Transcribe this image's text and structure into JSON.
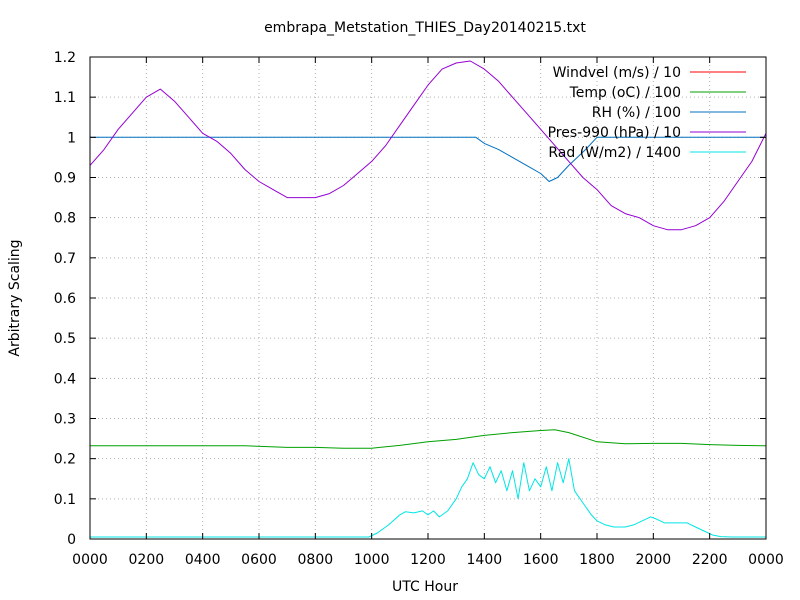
{
  "chart_data": {
    "type": "line",
    "title": "embrapa_Metstation_THIES_Day20140215.txt",
    "xlabel": "UTC Hour",
    "ylabel": "Arbitrary Scaling",
    "xlim": [
      0,
      24
    ],
    "ylim": [
      0,
      1.2
    ],
    "grid": true,
    "legend_position": "top-right",
    "xtick_labels": [
      "0000",
      "0200",
      "0400",
      "0600",
      "0800",
      "1000",
      "1200",
      "1400",
      "1600",
      "1800",
      "2000",
      "2200",
      "0000"
    ],
    "ytick_labels": [
      "0",
      "0.1",
      "0.2",
      "0.3",
      "0.4",
      "0.5",
      "0.6",
      "0.7",
      "0.8",
      "0.9",
      "1",
      "1.1",
      "1.2"
    ],
    "series": [
      {
        "name": "Windvel (m/s) / 10",
        "color": "#ff0000",
        "x": [],
        "y": []
      },
      {
        "name": "Temp (oC) / 100",
        "color": "#00a000",
        "x": [
          0,
          2,
          4,
          5.5,
          7,
          8,
          9,
          10,
          11,
          12,
          13,
          14,
          15,
          16,
          16.5,
          17,
          18,
          19,
          20,
          21,
          22,
          23,
          24
        ],
        "y": [
          0.232,
          0.232,
          0.232,
          0.232,
          0.228,
          0.228,
          0.226,
          0.226,
          0.233,
          0.242,
          0.248,
          0.258,
          0.265,
          0.27,
          0.272,
          0.265,
          0.242,
          0.237,
          0.238,
          0.238,
          0.235,
          0.233,
          0.232
        ]
      },
      {
        "name": "RH (%) / 100",
        "color": "#0070c0",
        "x": [
          0,
          6,
          12,
          13.7,
          14,
          14.5,
          15,
          15.5,
          16,
          16.3,
          16.6,
          17,
          17.3,
          17.6,
          18,
          24
        ],
        "y": [
          1,
          1,
          1,
          1,
          0.985,
          0.97,
          0.95,
          0.93,
          0.91,
          0.89,
          0.9,
          0.93,
          0.95,
          0.97,
          1,
          1
        ]
      },
      {
        "name": "Pres-990 (hPa) / 10",
        "color": "#9400d3",
        "x": [
          0,
          0.5,
          1,
          1.5,
          2,
          2.5,
          3,
          3.5,
          4,
          4.5,
          5,
          5.5,
          6,
          6.5,
          7,
          7.5,
          8,
          8.5,
          9,
          9.5,
          10,
          10.5,
          11,
          11.5,
          12,
          12.5,
          13,
          13.5,
          14,
          14.5,
          15,
          15.5,
          16,
          16.5,
          17,
          17.5,
          18,
          18.5,
          19,
          19.5,
          20,
          20.5,
          21,
          21.5,
          22,
          22.5,
          23,
          23.5,
          24
        ],
        "y": [
          0.93,
          0.97,
          1.02,
          1.06,
          1.1,
          1.12,
          1.09,
          1.05,
          1.01,
          0.99,
          0.96,
          0.92,
          0.89,
          0.87,
          0.85,
          0.85,
          0.85,
          0.86,
          0.88,
          0.91,
          0.94,
          0.98,
          1.03,
          1.08,
          1.13,
          1.17,
          1.185,
          1.19,
          1.17,
          1.14,
          1.1,
          1.06,
          1.02,
          0.98,
          0.94,
          0.9,
          0.87,
          0.83,
          0.81,
          0.8,
          0.78,
          0.77,
          0.77,
          0.78,
          0.8,
          0.84,
          0.89,
          0.94,
          1.01
        ]
      },
      {
        "name": "Rad (W/m2) / 1400",
        "color": "#00e5e5",
        "x": [
          0,
          9.9,
          10.2,
          10.6,
          11,
          11.2,
          11.5,
          11.8,
          12,
          12.2,
          12.4,
          12.7,
          13,
          13.2,
          13.4,
          13.6,
          13.8,
          14,
          14.2,
          14.4,
          14.6,
          14.8,
          15,
          15.2,
          15.4,
          15.6,
          15.8,
          16,
          16.2,
          16.4,
          16.6,
          16.8,
          17,
          17.2,
          17.5,
          17.8,
          18,
          18.3,
          18.6,
          19,
          19.3,
          19.6,
          19.9,
          20.1,
          20.4,
          20.8,
          21.2,
          21.5,
          21.8,
          22.1,
          22.4,
          22.8,
          23.2,
          24
        ],
        "y": [
          0.005,
          0.005,
          0.015,
          0.035,
          0.06,
          0.068,
          0.065,
          0.07,
          0.06,
          0.07,
          0.055,
          0.07,
          0.1,
          0.13,
          0.15,
          0.19,
          0.16,
          0.15,
          0.18,
          0.14,
          0.17,
          0.12,
          0.17,
          0.1,
          0.19,
          0.12,
          0.15,
          0.13,
          0.18,
          0.12,
          0.19,
          0.14,
          0.2,
          0.12,
          0.09,
          0.06,
          0.045,
          0.035,
          0.03,
          0.03,
          0.035,
          0.045,
          0.055,
          0.05,
          0.04,
          0.04,
          0.04,
          0.03,
          0.02,
          0.01,
          0.006,
          0.005,
          0.005,
          0.005
        ]
      }
    ]
  }
}
